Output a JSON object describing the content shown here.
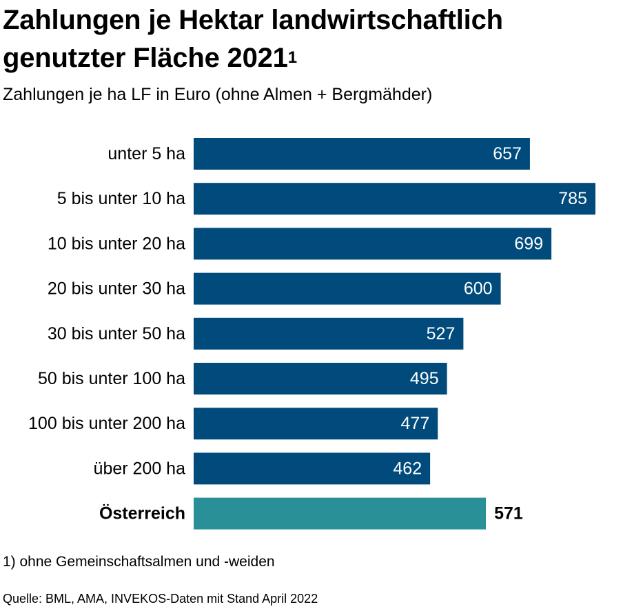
{
  "title": {
    "text": "Zahlungen je Hektar landwirtschaftlich genutzter Fläche 2021",
    "superscript": "1"
  },
  "subtitle": "Zahlungen je ha LF in Euro (ohne Almen + Bergmähder)",
  "footnote": "1) ohne Gemeinschaftsalmen und -weiden",
  "source": "Quelle: BML, AMA, INVEKOS-Daten mit Stand April 2022",
  "colors": {
    "bar": "#004b7c",
    "highlight": "#2a9097",
    "bar_label": "#ffffff",
    "text": "#000000"
  },
  "chart_data": {
    "type": "bar",
    "orientation": "horizontal",
    "categories": [
      "unter 5 ha",
      "5 bis unter 10 ha",
      "10 bis unter 20 ha",
      "20 bis unter 30 ha",
      "30 bis unter 50 ha",
      "50 bis unter 100 ha",
      "100 bis unter 200 ha",
      "über 200 ha",
      "Österreich"
    ],
    "values": [
      657,
      785,
      699,
      600,
      527,
      495,
      477,
      462,
      571
    ],
    "highlight_category": "Österreich",
    "xlim": [
      0,
      785
    ],
    "grid": false,
    "legend": false,
    "data_labels": true
  }
}
